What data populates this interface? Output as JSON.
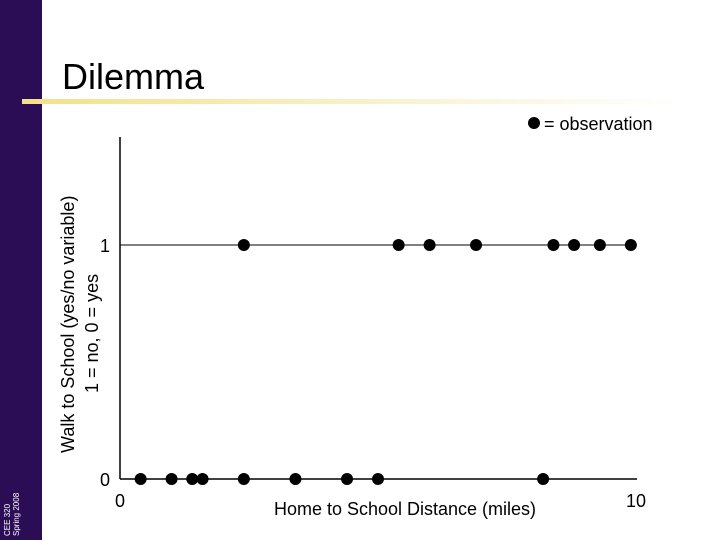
{
  "slide": {
    "title": "Dilemma",
    "sidebar_line1": "CEE 320",
    "sidebar_line2": "Spring 2008"
  },
  "legend": {
    "text": "= observation"
  },
  "chart_data": {
    "type": "scatter",
    "title": "Dilemma",
    "xlabel": "Home to School Distance (miles)",
    "ylabel": "Walk to School (yes/no variable)",
    "ylabel_secondary": "1 = no, 0 = yes",
    "xlim": [
      0,
      10
    ],
    "ylim": [
      0,
      1
    ],
    "x_ticks": [
      {
        "value": 0,
        "label": "0"
      },
      {
        "value": 10,
        "label": "10"
      }
    ],
    "y_ticks": [
      {
        "value": 0,
        "label": "0"
      },
      {
        "value": 1,
        "label": "1"
      }
    ],
    "reference_line": {
      "y": 1
    },
    "grid": false,
    "legend_position": "top-right",
    "marker_color": "#000000",
    "points": [
      {
        "x": 0.4,
        "y": 0
      },
      {
        "x": 1.0,
        "y": 0
      },
      {
        "x": 1.4,
        "y": 0
      },
      {
        "x": 1.6,
        "y": 0
      },
      {
        "x": 2.4,
        "y": 0
      },
      {
        "x": 3.4,
        "y": 0
      },
      {
        "x": 4.4,
        "y": 0
      },
      {
        "x": 5.0,
        "y": 0
      },
      {
        "x": 8.2,
        "y": 0
      },
      {
        "x": 2.4,
        "y": 1
      },
      {
        "x": 5.4,
        "y": 1
      },
      {
        "x": 6.0,
        "y": 1
      },
      {
        "x": 6.9,
        "y": 1
      },
      {
        "x": 8.4,
        "y": 1
      },
      {
        "x": 8.8,
        "y": 1
      },
      {
        "x": 9.3,
        "y": 1
      },
      {
        "x": 9.9,
        "y": 1
      }
    ]
  }
}
